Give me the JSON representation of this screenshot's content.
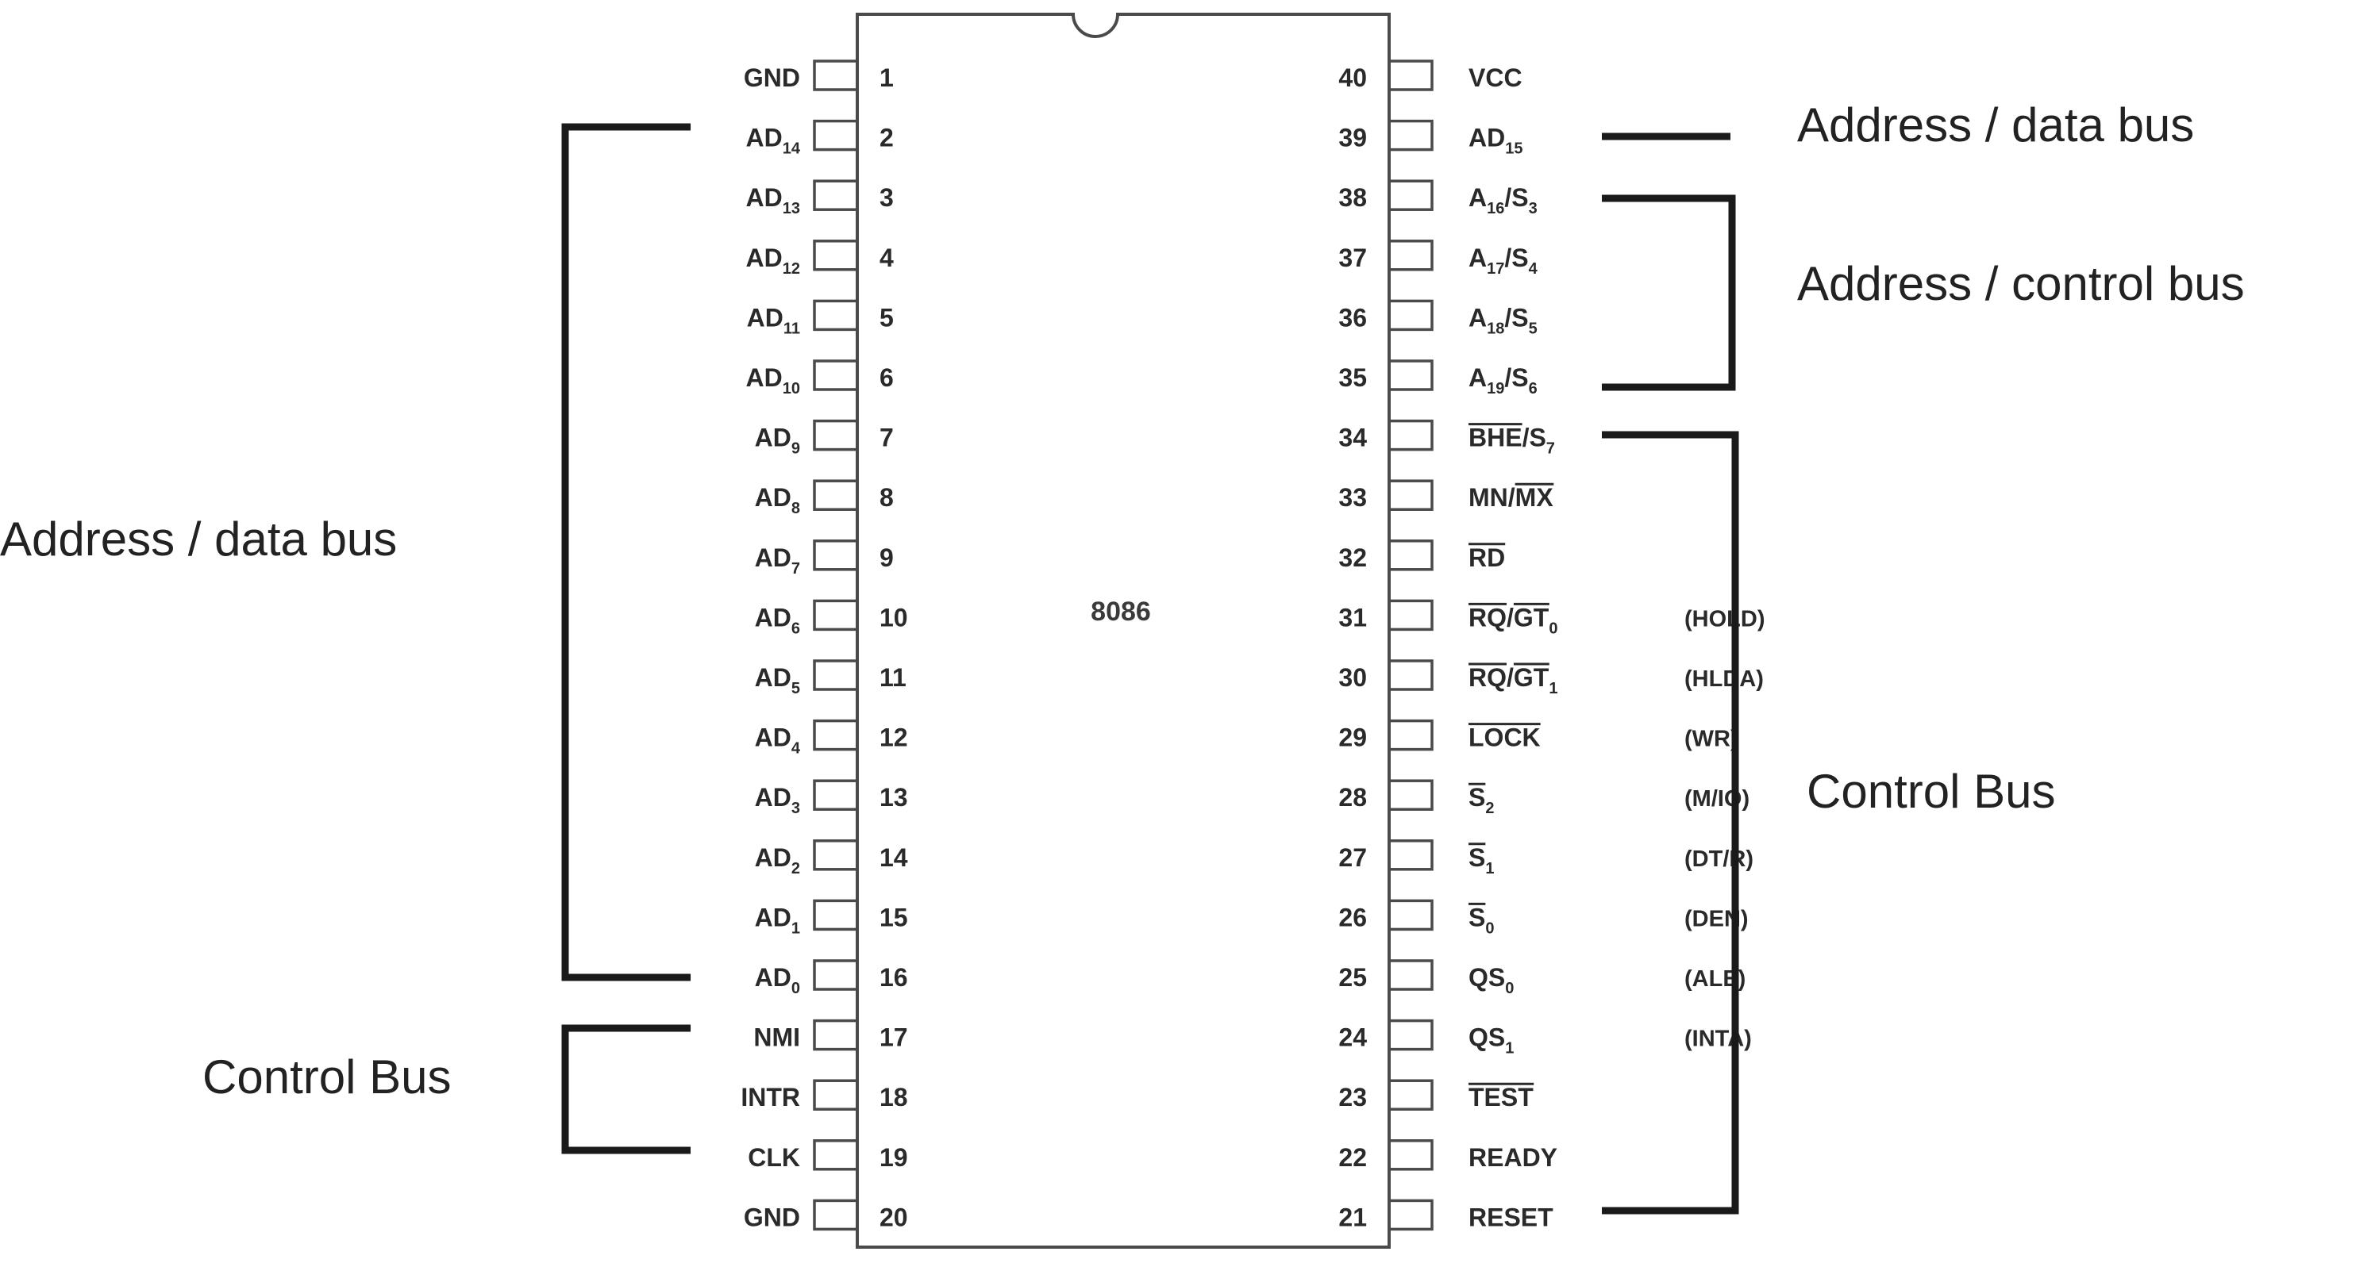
{
  "chip": {
    "name": "8086",
    "left_pins": [
      {
        "num": "1",
        "base": "GND",
        "sub": "",
        "over": false
      },
      {
        "num": "2",
        "base": "AD",
        "sub": "14",
        "over": false
      },
      {
        "num": "3",
        "base": "AD",
        "sub": "13",
        "over": false
      },
      {
        "num": "4",
        "base": "AD",
        "sub": "12",
        "over": false
      },
      {
        "num": "5",
        "base": "AD",
        "sub": "11",
        "over": false
      },
      {
        "num": "6",
        "base": "AD",
        "sub": "10",
        "over": false
      },
      {
        "num": "7",
        "base": "AD",
        "sub": "9",
        "over": false
      },
      {
        "num": "8",
        "base": "AD",
        "sub": "8",
        "over": false
      },
      {
        "num": "9",
        "base": "AD",
        "sub": "7",
        "over": false
      },
      {
        "num": "10",
        "base": "AD",
        "sub": "6",
        "over": false
      },
      {
        "num": "11",
        "base": "AD",
        "sub": "5",
        "over": false
      },
      {
        "num": "12",
        "base": "AD",
        "sub": "4",
        "over": false
      },
      {
        "num": "13",
        "base": "AD",
        "sub": "3",
        "over": false
      },
      {
        "num": "14",
        "base": "AD",
        "sub": "2",
        "over": false
      },
      {
        "num": "15",
        "base": "AD",
        "sub": "1",
        "over": false
      },
      {
        "num": "16",
        "base": "AD",
        "sub": "0",
        "over": false
      },
      {
        "num": "17",
        "base": "NMI",
        "sub": "",
        "over": false
      },
      {
        "num": "18",
        "base": "INTR",
        "sub": "",
        "over": false
      },
      {
        "num": "19",
        "base": "CLK",
        "sub": "",
        "over": false
      },
      {
        "num": "20",
        "base": "GND",
        "sub": "",
        "over": false
      }
    ],
    "right_pins": [
      {
        "num": "40",
        "parts": [
          {
            "t": "VCC"
          }
        ],
        "alt": ""
      },
      {
        "num": "39",
        "parts": [
          {
            "t": "AD"
          },
          {
            "t": "15",
            "sub": true
          }
        ],
        "alt": ""
      },
      {
        "num": "38",
        "parts": [
          {
            "t": "A"
          },
          {
            "t": "16",
            "sub": true
          },
          {
            "t": "/S"
          },
          {
            "t": "3",
            "sub": true
          }
        ],
        "alt": ""
      },
      {
        "num": "37",
        "parts": [
          {
            "t": "A"
          },
          {
            "t": "17",
            "sub": true
          },
          {
            "t": "/S"
          },
          {
            "t": "4",
            "sub": true
          }
        ],
        "alt": ""
      },
      {
        "num": "36",
        "parts": [
          {
            "t": "A"
          },
          {
            "t": "18",
            "sub": true
          },
          {
            "t": "/S"
          },
          {
            "t": "5",
            "sub": true
          }
        ],
        "alt": ""
      },
      {
        "num": "35",
        "parts": [
          {
            "t": "A"
          },
          {
            "t": "19",
            "sub": true
          },
          {
            "t": "/S"
          },
          {
            "t": "6",
            "sub": true
          }
        ],
        "alt": ""
      },
      {
        "num": "34",
        "parts": [
          {
            "t": "BHE",
            "over": true
          },
          {
            "t": "/S"
          },
          {
            "t": "7",
            "sub": true
          }
        ],
        "alt": ""
      },
      {
        "num": "33",
        "parts": [
          {
            "t": "MN/"
          },
          {
            "t": "MX",
            "over": true
          }
        ],
        "alt": ""
      },
      {
        "num": "32",
        "parts": [
          {
            "t": "RD",
            "over": true
          }
        ],
        "alt": ""
      },
      {
        "num": "31",
        "parts": [
          {
            "t": "RQ",
            "over": true
          },
          {
            "t": "/"
          },
          {
            "t": "GT",
            "over": true
          },
          {
            "t": "0",
            "sub": true
          }
        ],
        "alt": "(HOLD)"
      },
      {
        "num": "30",
        "parts": [
          {
            "t": "RQ",
            "over": true
          },
          {
            "t": "/"
          },
          {
            "t": "GT",
            "over": true
          },
          {
            "t": "1",
            "sub": true
          }
        ],
        "alt": "(HLDA)"
      },
      {
        "num": "29",
        "parts": [
          {
            "t": "LOCK",
            "over": true
          }
        ],
        "alt": "(WR)"
      },
      {
        "num": "28",
        "parts": [
          {
            "t": "S",
            "over": true
          },
          {
            "t": "2",
            "sub": true
          }
        ],
        "alt": "(M/IO)"
      },
      {
        "num": "27",
        "parts": [
          {
            "t": "S",
            "over": true
          },
          {
            "t": "1",
            "sub": true
          }
        ],
        "alt": "(DT/R)"
      },
      {
        "num": "26",
        "parts": [
          {
            "t": "S",
            "over": true
          },
          {
            "t": "0",
            "sub": true
          }
        ],
        "alt": "(DEN)"
      },
      {
        "num": "25",
        "parts": [
          {
            "t": "QS"
          },
          {
            "t": "0",
            "sub": true
          }
        ],
        "alt": "(ALE)"
      },
      {
        "num": "24",
        "parts": [
          {
            "t": "QS"
          },
          {
            "t": "1",
            "sub": true
          }
        ],
        "alt": "(INTA)"
      },
      {
        "num": "23",
        "parts": [
          {
            "t": "TEST",
            "over": true
          }
        ],
        "alt": ""
      },
      {
        "num": "22",
        "parts": [
          {
            "t": "READY"
          }
        ],
        "alt": ""
      },
      {
        "num": "21",
        "parts": [
          {
            "t": "RESET"
          }
        ],
        "alt": ""
      }
    ]
  },
  "groups": {
    "left_address_data": "Address / data bus",
    "left_control": "Control Bus",
    "right_address_data": "Address / data bus",
    "right_address_control": "Address / control bus",
    "right_control": "Control Bus"
  },
  "colors": {
    "line": "#1a1a1a",
    "chip_outline": "#4a4a4a"
  }
}
